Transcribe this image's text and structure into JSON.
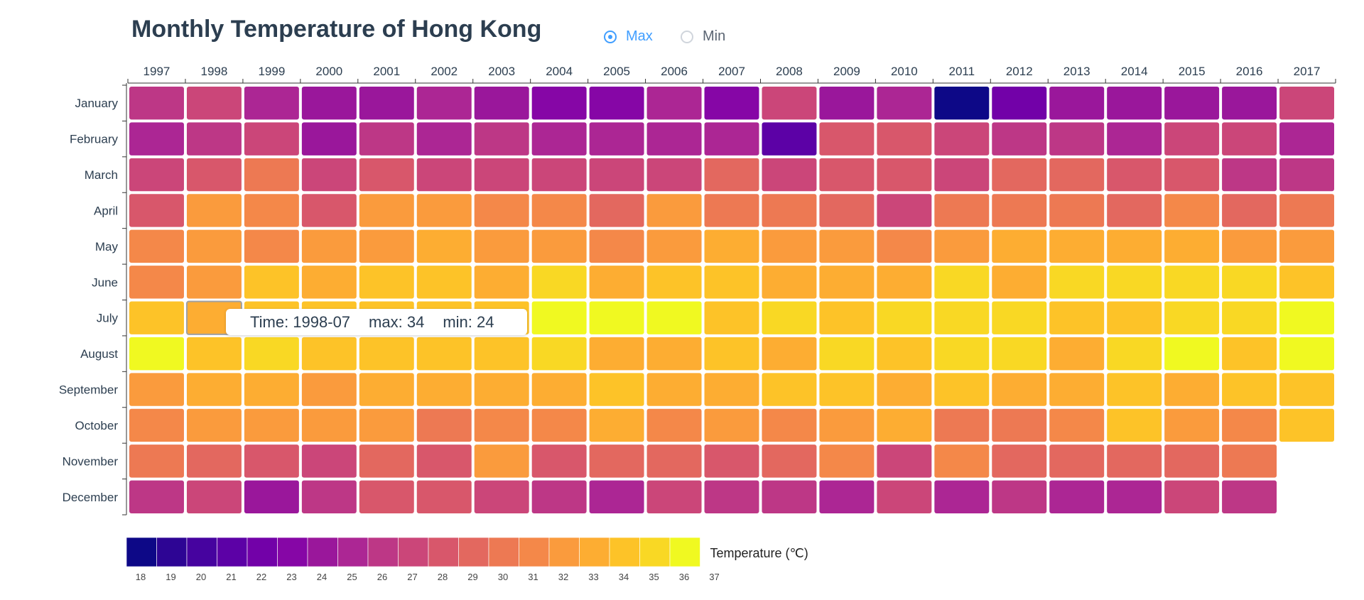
{
  "title": "Monthly Temperature of Hong Kong",
  "toggle": {
    "options": [
      "Max",
      "Min"
    ],
    "selected": "Max"
  },
  "tooltip": {
    "time": "Time: 1998-07",
    "max": "max: 34",
    "min": "min: 24"
  },
  "colors": {
    "accent": "#409eff",
    "text": "#2c3e50",
    "scale": [
      "#0d0887",
      "#2d0594",
      "#46039f",
      "#5c01a6",
      "#7201a8",
      "#8606a6",
      "#9a179b",
      "#ac2694",
      "#bd3786",
      "#cb4679",
      "#d8576b",
      "#e3685f",
      "#ed7953",
      "#f48849",
      "#fa9b3d",
      "#fdad32",
      "#fdc328",
      "#f9d824",
      "#f0f921"
    ]
  },
  "chart_data": {
    "type": "heatmap",
    "title": "Monthly Temperature of Hong Kong",
    "x": [
      "1997",
      "1998",
      "1999",
      "2000",
      "2001",
      "2002",
      "2003",
      "2004",
      "2005",
      "2006",
      "2007",
      "2008",
      "2009",
      "2010",
      "2011",
      "2012",
      "2013",
      "2014",
      "2015",
      "2016",
      "2017"
    ],
    "y": [
      "January",
      "February",
      "March",
      "April",
      "May",
      "June",
      "July",
      "August",
      "September",
      "October",
      "November",
      "December"
    ],
    "metric": "max",
    "values": [
      [
        26,
        27,
        25,
        24,
        24,
        25,
        24,
        23,
        23,
        25,
        23,
        27,
        24,
        25,
        18,
        22,
        24,
        24,
        24,
        24,
        27
      ],
      [
        25,
        26,
        28,
        24,
        26,
        25,
        26,
        25,
        25,
        25,
        25,
        21,
        29,
        29,
        28,
        26,
        26,
        25,
        28,
        28,
        25
      ],
      [
        28,
        29,
        31,
        28,
        29,
        28,
        28,
        27,
        28,
        28,
        30,
        27,
        29,
        29,
        27,
        30,
        30,
        29,
        29,
        26,
        26
      ],
      [
        29,
        33,
        32,
        29,
        33,
        33,
        32,
        32,
        30,
        33,
        31,
        31,
        30,
        28,
        31,
        31,
        31,
        30,
        32,
        30,
        31
      ],
      [
        32,
        33,
        32,
        33,
        33,
        34,
        33,
        33,
        32,
        33,
        34,
        33,
        33,
        32,
        33,
        34,
        34,
        34,
        34,
        33,
        33
      ],
      [
        32,
        33,
        35,
        34,
        35,
        35,
        34,
        36,
        34,
        35,
        35,
        34,
        34,
        34,
        36,
        34,
        36,
        36,
        36,
        36,
        35
      ],
      [
        35,
        34,
        35,
        35,
        35,
        35,
        35,
        37,
        37,
        37,
        35,
        36,
        35,
        36,
        36,
        36,
        35,
        35,
        36,
        36,
        37
      ],
      [
        37,
        35,
        36,
        35,
        35,
        35,
        35,
        36,
        34,
        34,
        35,
        34,
        36,
        35,
        36,
        36,
        34,
        36,
        37,
        35,
        37
      ],
      [
        33,
        34,
        34,
        33,
        34,
        34,
        34,
        34,
        35,
        34,
        34,
        35,
        35,
        34,
        35,
        34,
        34,
        35,
        34,
        35,
        35
      ],
      [
        32,
        33,
        33,
        33,
        33,
        31,
        32,
        32,
        34,
        32,
        33,
        32,
        33,
        34,
        31,
        31,
        32,
        35,
        33,
        32,
        35
      ],
      [
        31,
        30,
        29,
        28,
        30,
        29,
        33,
        29,
        30,
        30,
        29,
        30,
        32,
        27,
        32,
        30,
        30,
        30,
        30,
        31,
        null
      ],
      [
        26,
        27,
        24,
        26,
        29,
        29,
        27,
        26,
        25,
        27,
        26,
        26,
        25,
        28,
        25,
        26,
        25,
        25,
        27,
        26,
        null
      ]
    ],
    "range": [
      18,
      37
    ],
    "legend": {
      "title": "Temperature (℃)",
      "ticks": [
        "18",
        "19",
        "20",
        "21",
        "22",
        "23",
        "24",
        "25",
        "26",
        "27",
        "28",
        "29",
        "30",
        "31",
        "32",
        "33",
        "34",
        "35",
        "36",
        "37"
      ]
    },
    "highlighted": {
      "x": "1998",
      "y": "July"
    }
  }
}
